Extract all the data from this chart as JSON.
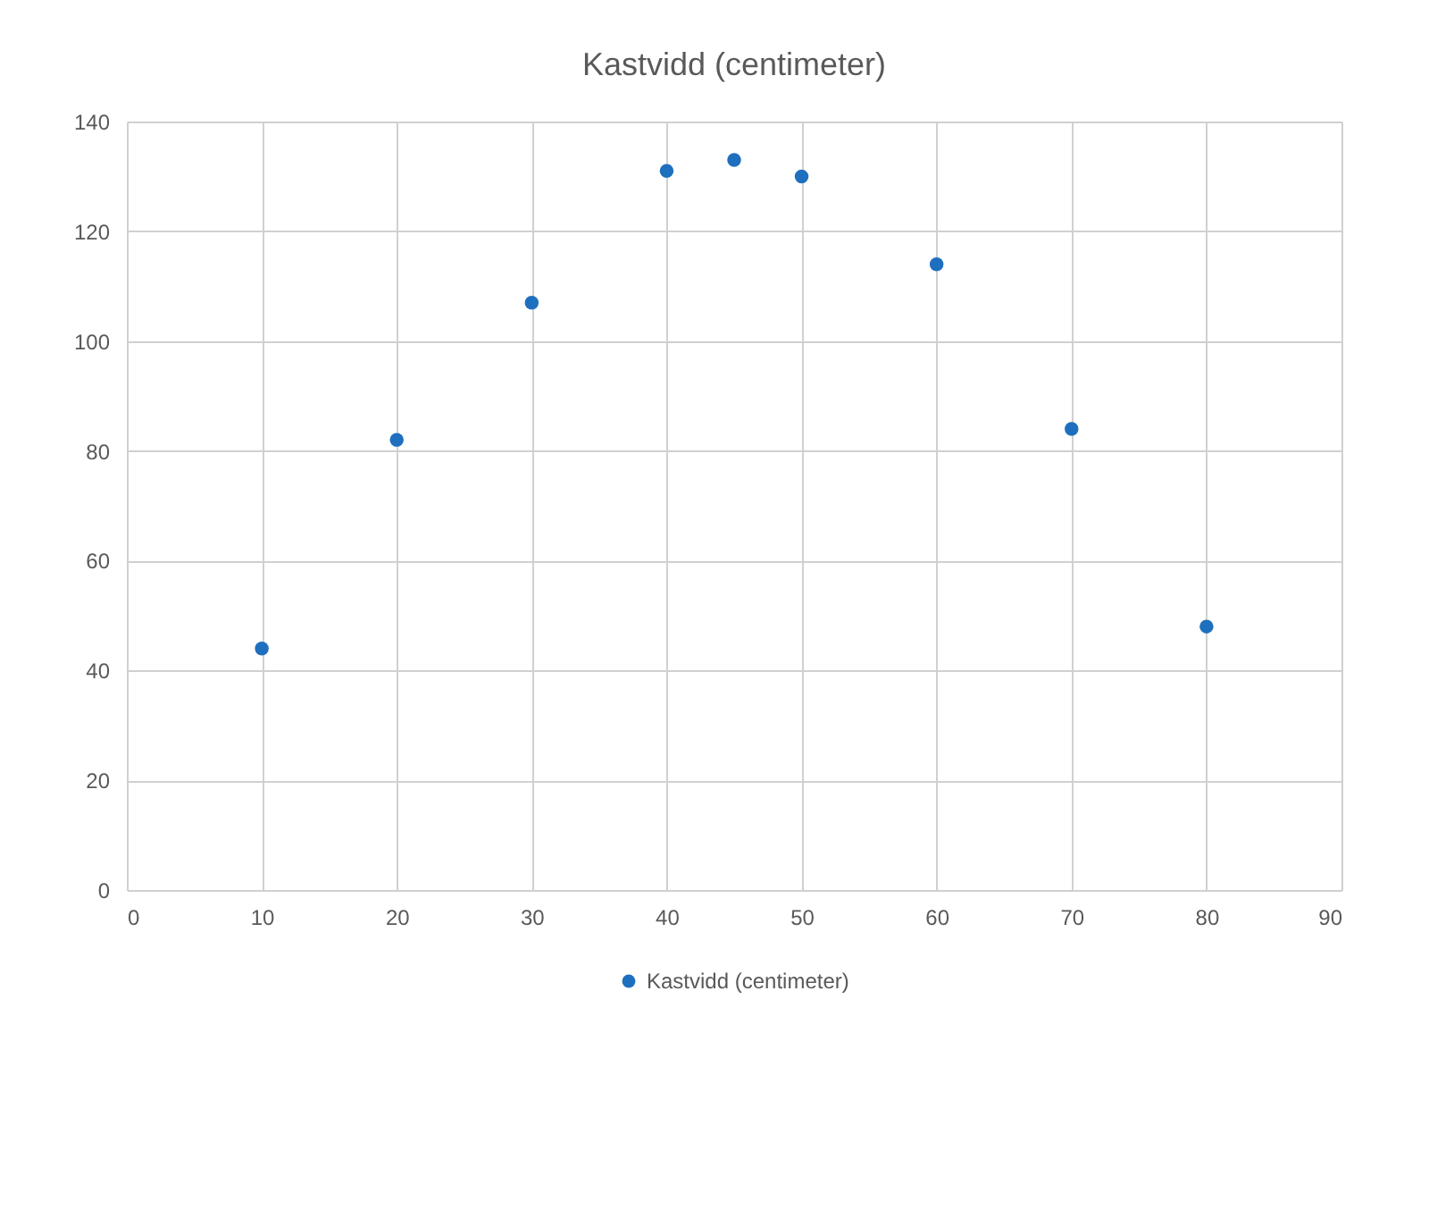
{
  "chart_data": {
    "type": "scatter",
    "title": "Kastvidd (centimeter)",
    "x": [
      10,
      20,
      30,
      40,
      45,
      50,
      60,
      70,
      80
    ],
    "series": [
      {
        "name": "Kastvidd (centimeter)",
        "color": "#1f6fbf",
        "values": [
          44,
          82,
          107,
          131,
          133,
          130,
          114,
          84,
          48
        ]
      }
    ],
    "xlim": [
      0,
      90
    ],
    "xticks": [
      0,
      10,
      20,
      30,
      40,
      50,
      60,
      70,
      80,
      90
    ],
    "ylim": [
      0,
      140
    ],
    "yticks": [
      0,
      20,
      40,
      60,
      80,
      100,
      120,
      140
    ],
    "grid": true,
    "legend": "bottom",
    "marker": "circle"
  }
}
